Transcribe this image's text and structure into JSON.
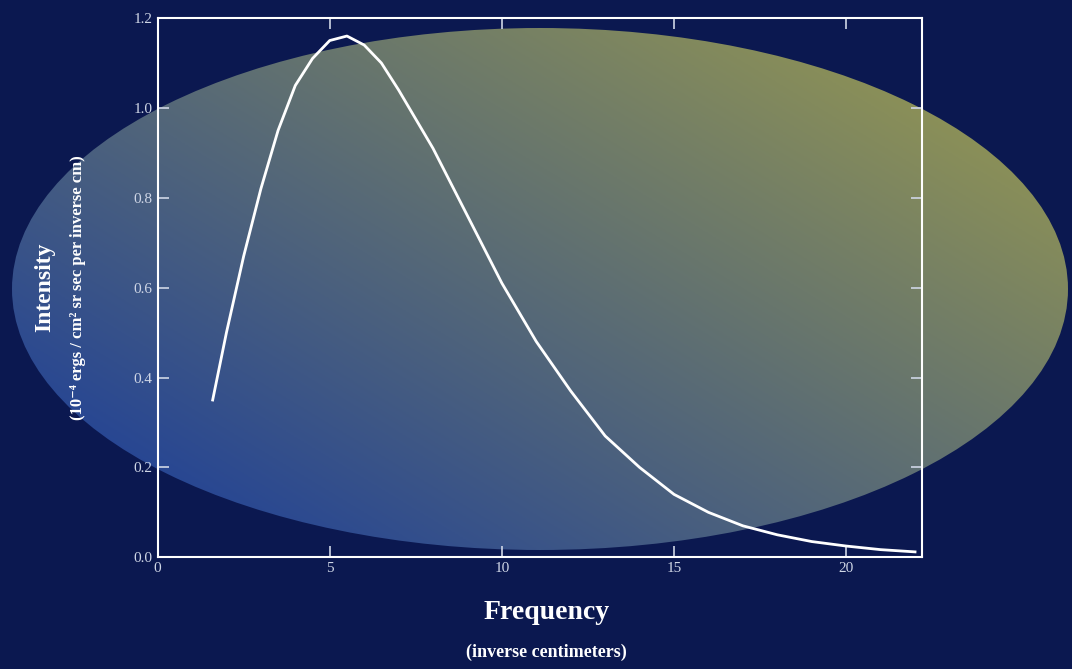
{
  "chart_data": {
    "type": "line",
    "xlabel": "Frequency",
    "xlabel_unit": "(inverse centimeters)",
    "ylabel": "Intensity",
    "ylabel_unit": "(10⁻⁴ ergs / cm² sr sec per inverse cm)",
    "x": [
      1.6,
      2,
      2.5,
      3,
      3.5,
      4,
      4.5,
      5,
      5.5,
      6,
      6.5,
      7,
      8,
      9,
      10,
      11,
      12,
      13,
      14,
      15,
      16,
      17,
      18,
      19,
      20,
      21,
      22
    ],
    "values": [
      0.35,
      0.5,
      0.67,
      0.82,
      0.95,
      1.05,
      1.11,
      1.15,
      1.16,
      1.14,
      1.1,
      1.04,
      0.91,
      0.76,
      0.61,
      0.48,
      0.37,
      0.27,
      0.2,
      0.14,
      0.1,
      0.07,
      0.05,
      0.035,
      0.025,
      0.017,
      0.012
    ],
    "color": "#ffffff",
    "xlim": [
      0,
      22.2
    ],
    "ylim": [
      0,
      1.2
    ],
    "xticks": [
      0,
      5,
      10,
      15,
      20
    ],
    "yticks": [
      {
        "value": 0.0,
        "label": "0.0"
      },
      {
        "value": 0.2,
        "label": "0.2"
      },
      {
        "value": 0.4,
        "label": "0.4"
      },
      {
        "value": 0.6,
        "label": "0.6"
      },
      {
        "value": 0.8,
        "label": "0.8"
      },
      {
        "value": 1.0,
        "label": "1.0"
      },
      {
        "value": 1.2,
        "label": "1.2"
      }
    ],
    "grid": false
  }
}
